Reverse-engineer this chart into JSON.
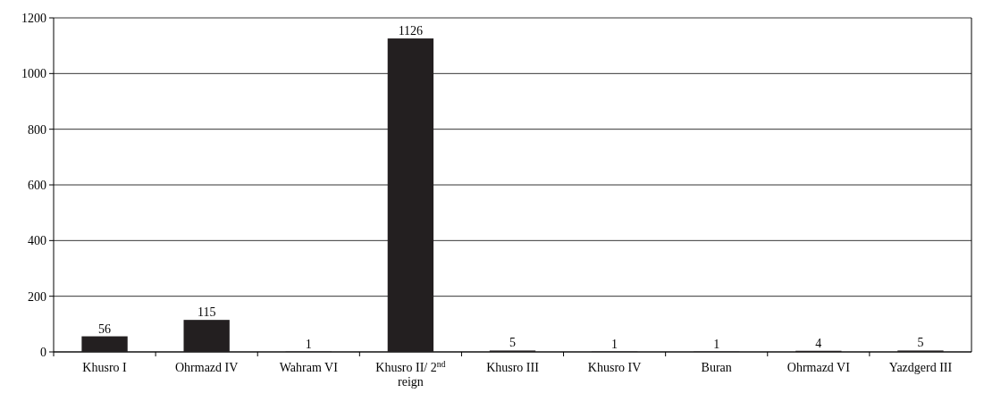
{
  "chart_data": {
    "type": "bar",
    "categories": [
      "Khusro I",
      "Ohrmazd IV",
      "Wahram VI",
      "Khusro II/ 2$^{nd}$ reign",
      "Khusro III",
      "Khusro IV",
      "Buran",
      "Ohrmazd VI",
      "Yazdgerd III"
    ],
    "values": [
      56,
      115,
      1,
      1126,
      5,
      1,
      1,
      4,
      5
    ],
    "color": "#231f20",
    "ylim": [
      0,
      1200
    ],
    "yticks": [
      0,
      200,
      400,
      600,
      800,
      1000,
      1200
    ],
    "grid": "y",
    "data_labels": true
  }
}
